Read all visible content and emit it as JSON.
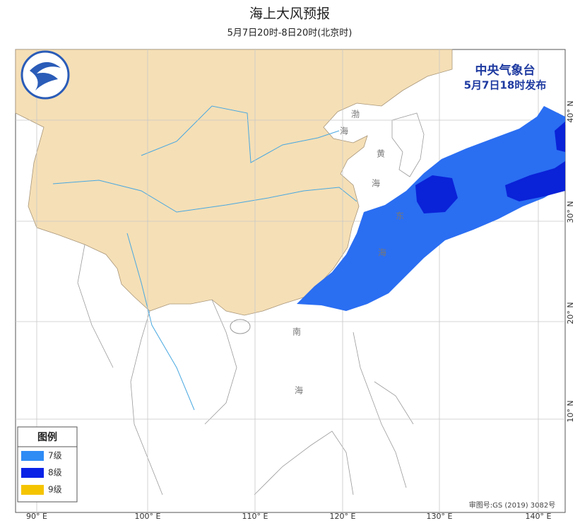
{
  "header": {
    "title": "海上大风预报",
    "subtitle": "5月7日20时-8日20时(北京时)"
  },
  "issuer": {
    "name": "中央气象台",
    "issued": "5月7日18时发布"
  },
  "legend": {
    "title": "图例",
    "items": [
      "7级",
      "8级",
      "9级"
    ]
  },
  "sea_labels": [
    [
      "渤",
      "海"
    ],
    [
      "黄",
      "海"
    ],
    [
      "东",
      "海"
    ],
    [
      "南",
      "海"
    ]
  ],
  "longitude_labels": [
    "90° E",
    "100° E",
    "110° E",
    "120° E",
    "130° E",
    "140° E"
  ],
  "latitude_labels": [
    "40° N",
    "30° N",
    "20° N",
    "10° N"
  ],
  "approval": "审图号:GS (2019) 3082号"
}
